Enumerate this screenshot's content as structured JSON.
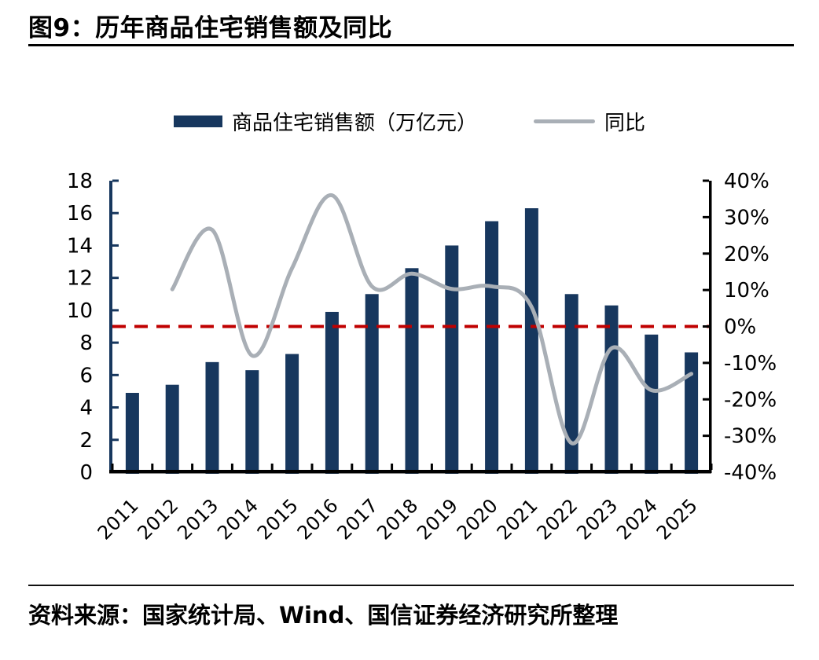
{
  "figure": {
    "title": "图9：历年商品住宅销售额及同比",
    "source": "资料来源：国家统计局、Wind、国信证券经济研究所整理"
  },
  "legend": {
    "bar_label": "商品住宅销售额（万亿元）",
    "line_label": "同比"
  },
  "colors": {
    "bar": "#17375E",
    "line": "#A9AFB6",
    "reference_line": "#C00000",
    "axis_left": "#17375E",
    "axis_right": "#000000",
    "axis_bottom": "#000000",
    "text": "#000000"
  },
  "chart_data": {
    "type": "bar",
    "title": "历年商品住宅销售额及同比",
    "categories": [
      "2011",
      "2012",
      "2013",
      "2014",
      "2015",
      "2016",
      "2017",
      "2018",
      "2019",
      "2020",
      "2021",
      "2022",
      "2023",
      "2024",
      "2025"
    ],
    "series": [
      {
        "name": "商品住宅销售额（万亿元）",
        "type": "bar",
        "axis": "left",
        "values": [
          4.9,
          5.4,
          6.8,
          6.3,
          7.3,
          9.9,
          11.0,
          12.6,
          14.0,
          15.5,
          16.3,
          11.0,
          10.3,
          8.5,
          7.4
        ]
      },
      {
        "name": "同比",
        "type": "line",
        "axis": "right",
        "values": [
          null,
          10.2,
          26.5,
          -8,
          16,
          36,
          11,
          14.5,
          10.3,
          11,
          5.3,
          -32,
          -6,
          -17.5,
          -13
        ]
      }
    ],
    "left_axis": {
      "min": 0,
      "max": 18,
      "step": 2,
      "tick_labels": [
        "18",
        "16",
        "14",
        "12",
        "10",
        "8",
        "6",
        "4",
        "2",
        "0"
      ]
    },
    "right_axis": {
      "min": -40,
      "max": 40,
      "step": 10,
      "unit": "%",
      "tick_labels": [
        "40%",
        "30%",
        "20%",
        "10%",
        "0%",
        "-10%",
        "-20%",
        "-30%",
        "-40%"
      ]
    },
    "reference_line": {
      "axis": "right",
      "value": 0,
      "style": "dashed"
    },
    "grid": false,
    "legend_position": "top"
  }
}
